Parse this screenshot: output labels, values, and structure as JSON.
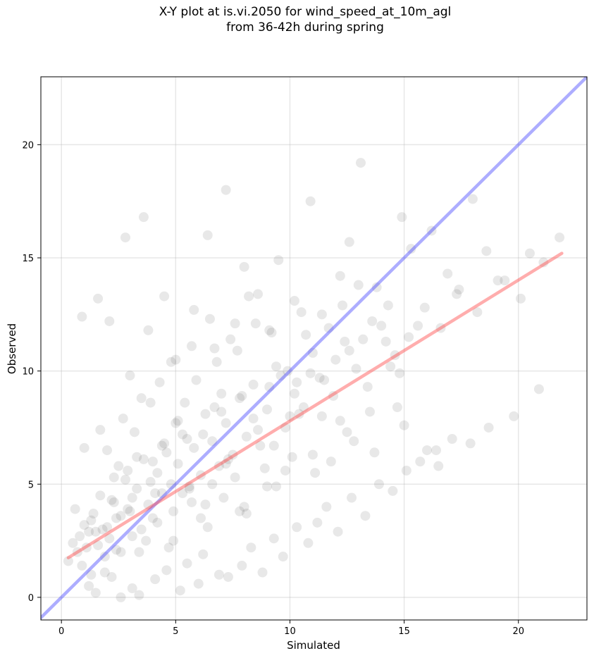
{
  "chart_data": {
    "type": "scatter",
    "title": "X-Y plot at is.vi.2050 for wind_speed_at_10m_agl",
    "subtitle": "from 36-42h during spring",
    "xlabel": "Simulated",
    "ylabel": "Observed",
    "xlim": [
      -0.9,
      23.0
    ],
    "ylim": [
      -1.0,
      23.0
    ],
    "xticks": [
      0,
      5,
      10,
      15,
      20
    ],
    "yticks": [
      0,
      5,
      10,
      15,
      20
    ],
    "grid": true,
    "colors": {
      "points": "#000000",
      "one_to_one": "#4a4aff",
      "fit": "#ff4a4a"
    },
    "lines": [
      {
        "role": "one-to-one",
        "x": [
          -1.0,
          23.0
        ],
        "y": [
          -1.0,
          23.0
        ]
      },
      {
        "role": "linear-fit",
        "x": [
          0.3,
          21.9
        ],
        "y": [
          1.75,
          15.2
        ]
      }
    ],
    "points": {
      "x": [
        0.3,
        0.5,
        0.7,
        0.9,
        1.0,
        1.1,
        1.2,
        1.3,
        1.4,
        1.6,
        1.7,
        1.9,
        2.0,
        2.1,
        2.3,
        2.4,
        2.6,
        2.8,
        2.9,
        3.1,
        3.3,
        3.5,
        3.6,
        3.8,
        4.0,
        4.2,
        4.4,
        4.6,
        4.9,
        5.1,
        5.3,
        5.6,
        5.8,
        6.1,
        6.3,
        6.6,
        6.9,
        7.2,
        7.5,
        7.8,
        8.1,
        8.4,
        8.7,
        9.0,
        9.4,
        9.8,
        10.2,
        10.6,
        11.0,
        11.5,
        11.9,
        12.4,
        12.9,
        13.4,
        14.0,
        14.6,
        15.2,
        15.9,
        16.6,
        17.3,
        18.2,
        19.1,
        20.1,
        21.1,
        21.8,
        0.9,
        1.0,
        1.6,
        1.7,
        2.1,
        2.8,
        3.0,
        3.6,
        3.8,
        4.5,
        5.0,
        5.4,
        5.8,
        6.4,
        6.7,
        7.2,
        7.6,
        8.0,
        8.6,
        9.1,
        9.5,
        10.2,
        10.5,
        10.9,
        11.7,
        12.2,
        12.6,
        13.1,
        13.8,
        14.3,
        14.9,
        15.3,
        16.2,
        16.9,
        17.4,
        18.0,
        18.6,
        19.4,
        20.5,
        1.2,
        1.5,
        2.2,
        2.6,
        3.1,
        3.4,
        4.1,
        4.6,
        5.2,
        5.5,
        6.0,
        6.2,
        6.9,
        7.3,
        7.9,
        8.3,
        8.8,
        9.3,
        9.7,
        10.3,
        10.8,
        11.2,
        11.6,
        12.1,
        12.7,
        13.3,
        13.9,
        14.5,
        15.1,
        15.7,
        16.4,
        17.1,
        17.9,
        18.7,
        19.8,
        20.9,
        2.5,
        3.2,
        3.9,
        4.3,
        4.8,
        5.7,
        6.5,
        7.0,
        7.7,
        8.2,
        9.2,
        9.9,
        10.7,
        11.4,
        12.3,
        13.0,
        13.6,
        14.2,
        14.8,
        15.6,
        2.0,
        2.7,
        3.5,
        4.4,
        5.1,
        5.9,
        6.8,
        7.4,
        8.5,
        9.6,
        10.4,
        11.3,
        12.5,
        13.5,
        14.7,
        16.0,
        1.8,
        2.4,
        3.0,
        3.7,
        4.2,
        4.7,
        5.3,
        6.1,
        6.6,
        7.1,
        7.6,
        8.0,
        8.9,
        9.4,
        10.1,
        11.1,
        11.8,
        12.8,
        13.7,
        15.0,
        16.5,
        0.6,
        1.3,
        2.2,
        2.9,
        3.3,
        3.9,
        4.5,
        5.0,
        5.6,
        6.2,
        6.7,
        7.3,
        7.9,
        8.6,
        9.1,
        10.0,
        10.9,
        12.0,
        13.2,
        14.4,
        1.5,
        2.3,
        3.1,
        4.0,
        4.8,
        5.5,
        6.3,
        7.0,
        7.8,
        8.4,
        9.3,
        10.3,
        11.4,
        12.6,
        0.8,
        1.9,
        2.6,
        3.4,
        4.1,
        4.9,
        5.7,
        6.4,
        7.2,
        8.1,
        9.0,
        9.8,
        11.0,
        12.2
      ],
      "y": [
        1.6,
        2.4,
        2.0,
        1.4,
        3.2,
        2.2,
        2.9,
        1.0,
        3.7,
        2.3,
        4.5,
        1.8,
        3.1,
        2.6,
        4.2,
        3.5,
        2.0,
        5.2,
        3.9,
        2.7,
        4.8,
        3.0,
        6.1,
        4.1,
        3.5,
        5.5,
        4.6,
        6.4,
        3.8,
        5.9,
        7.2,
        4.9,
        6.6,
        5.4,
        8.1,
        6.9,
        5.8,
        7.7,
        6.3,
        8.8,
        7.1,
        9.4,
        6.7,
        8.3,
        10.2,
        7.5,
        9.0,
        8.4,
        10.8,
        9.6,
        8.9,
        11.3,
        10.1,
        9.3,
        12.0,
        10.7,
        11.5,
        12.8,
        11.9,
        13.4,
        12.6,
        14.0,
        13.2,
        14.8,
        15.9,
        12.4,
        6.6,
        13.2,
        7.4,
        12.2,
        15.9,
        9.8,
        16.8,
        11.8,
        13.3,
        10.5,
        8.6,
        12.7,
        16.0,
        11.0,
        18.0,
        12.1,
        14.6,
        13.4,
        11.8,
        14.9,
        13.1,
        12.6,
        17.5,
        11.9,
        14.2,
        15.7,
        19.2,
        13.7,
        12.9,
        16.8,
        15.4,
        16.2,
        14.3,
        13.6,
        17.6,
        15.3,
        14.0,
        15.2,
        0.5,
        0.2,
        0.9,
        0.0,
        0.4,
        0.1,
        0.8,
        1.2,
        0.3,
        1.5,
        0.6,
        1.9,
        1.0,
        0.9,
        1.4,
        2.2,
        1.1,
        2.6,
        1.8,
        3.1,
        2.4,
        3.3,
        4.0,
        2.9,
        4.4,
        3.6,
        5.0,
        4.7,
        5.6,
        6.0,
        6.5,
        7.0,
        6.8,
        7.5,
        8.0,
        9.2,
        5.8,
        7.3,
        8.6,
        9.5,
        10.4,
        11.1,
        12.3,
        9.0,
        10.9,
        13.3,
        11.7,
        10.0,
        11.6,
        12.5,
        12.9,
        13.8,
        12.2,
        11.3,
        9.9,
        12.0,
        6.5,
        7.9,
        8.8,
        6.7,
        7.8,
        9.6,
        10.4,
        11.4,
        12.1,
        9.8,
        8.1,
        9.7,
        7.3,
        8.2,
        8.4,
        6.5,
        3.0,
        2.1,
        3.8,
        2.5,
        3.3,
        2.2,
        4.6,
        3.5,
        5.0,
        4.4,
        5.3,
        4.0,
        5.7,
        4.9,
        6.2,
        5.5,
        6.0,
        6.9,
        6.4,
        7.6,
        5.8,
        3.9,
        3.4,
        4.3,
        5.6,
        6.2,
        5.1,
        6.8,
        7.7,
        4.8,
        7.2,
        8.4,
        6.1,
        8.9,
        7.4,
        9.3,
        8.0,
        9.9,
        10.5,
        11.4,
        10.2,
        2.9,
        5.3,
        4.4,
        6.0,
        5.0,
        7.0,
        4.1,
        8.2,
        3.8,
        7.9,
        6.7,
        9.5,
        8.0,
        10.9,
        2.7,
        1.1,
        3.6,
        2.0,
        4.6,
        2.5,
        4.2,
        3.1,
        5.9,
        3.7,
        4.9,
        5.6,
        6.3,
        7.8
      ]
    }
  }
}
